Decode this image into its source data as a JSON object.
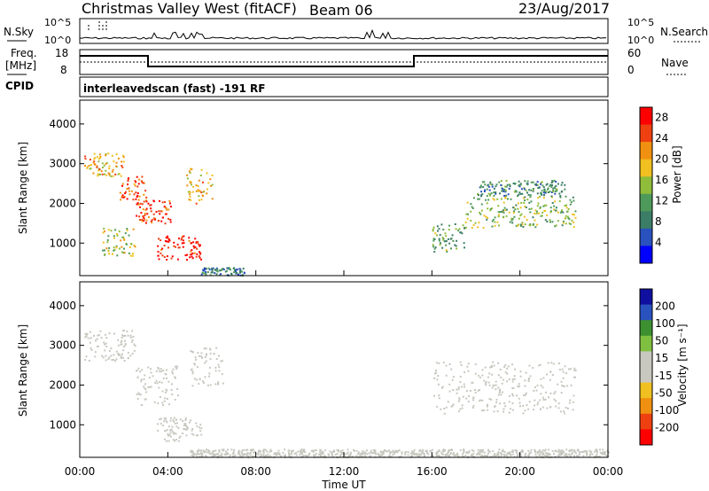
{
  "header": {
    "radar": "Christmas Valley West (fitACF)",
    "beam": "Beam 06",
    "date": "23/Aug/2017"
  },
  "top_panels": {
    "nsky_label": "N.Sky",
    "nsearch_label": "N.Search",
    "noise_ticks": [
      "10^5",
      "10^0"
    ],
    "freq_label_line1": "Freq.",
    "freq_label_line2": "[MHz]",
    "freq_ticks": [
      "18",
      "8"
    ],
    "nave_label": "Nave",
    "nave_ticks": [
      "60",
      "0"
    ],
    "cpid_label": "CPID",
    "cpid_text": "interleavedscan (fast) -191 RF"
  },
  "chart_data": [
    {
      "type": "heatmap",
      "title": "",
      "xlabel": "",
      "ylabel": "Slant Range [km]",
      "x_range_hours": [
        0,
        24
      ],
      "ylim": [
        180,
        4600
      ],
      "y_ticks": [
        1000,
        2000,
        3000,
        4000
      ],
      "colorbar": {
        "label": "Power [dB]",
        "ticks": [
          4,
          8,
          12,
          16,
          20,
          24,
          28
        ],
        "range": [
          0,
          30
        ],
        "colors": [
          "#0000ff",
          "#2a52be",
          "#3b7d66",
          "#4e9a5a",
          "#8fbc3a",
          "#f0c020",
          "#f09010",
          "#ee4010",
          "#ff0000"
        ]
      },
      "regions": [
        {
          "t0": 0.2,
          "t1": 2.0,
          "r0": 2700,
          "r1": 3300,
          "value": 20
        },
        {
          "t0": 1.8,
          "t1": 3.0,
          "r0": 2100,
          "r1": 2700,
          "value": 24
        },
        {
          "t0": 2.5,
          "t1": 4.2,
          "r0": 1500,
          "r1": 2100,
          "value": 26
        },
        {
          "t0": 3.5,
          "t1": 5.5,
          "r0": 600,
          "r1": 1200,
          "value": 28
        },
        {
          "t0": 1.0,
          "t1": 2.5,
          "r0": 700,
          "r1": 1400,
          "value": 16
        },
        {
          "t0": 4.8,
          "t1": 6.0,
          "r0": 2000,
          "r1": 2900,
          "value": 20
        },
        {
          "t0": 5.5,
          "t1": 7.5,
          "r0": 200,
          "r1": 400,
          "value": 8
        },
        {
          "t0": 16.0,
          "t1": 17.5,
          "r0": 800,
          "r1": 1500,
          "value": 12
        },
        {
          "t0": 17.5,
          "t1": 22.5,
          "r0": 1400,
          "r1": 2200,
          "value": 14
        },
        {
          "t0": 18.0,
          "t1": 22.0,
          "r0": 2200,
          "r1": 2600,
          "value": 10
        }
      ]
    },
    {
      "type": "heatmap",
      "title": "",
      "xlabel": "Time UT",
      "ylabel": "Slant Range [km]",
      "x_range_hours": [
        0,
        24
      ],
      "x_ticks": [
        "00:00",
        "04:00",
        "08:00",
        "12:00",
        "16:00",
        "20:00",
        "00:00"
      ],
      "ylim": [
        180,
        4600
      ],
      "y_ticks": [
        1000,
        2000,
        3000,
        4000
      ],
      "colorbar": {
        "label": "Velocity [m s⁻¹]",
        "ticks": [
          200,
          100,
          50,
          15,
          -15,
          -50,
          -100,
          -200
        ],
        "colors": [
          "#ff0000",
          "#ee4010",
          "#f09010",
          "#f0c020",
          "#c8c8c0",
          "#c8c8c0",
          "#80c040",
          "#3c9030",
          "#2a52be",
          "#1010a0"
        ]
      },
      "regions": [
        {
          "t0": 0.2,
          "t1": 2.5,
          "r0": 2600,
          "r1": 3400,
          "value": 0
        },
        {
          "t0": 2.5,
          "t1": 4.5,
          "r0": 1500,
          "r1": 2500,
          "value": -30
        },
        {
          "t0": 3.5,
          "t1": 5.5,
          "r0": 600,
          "r1": 1200,
          "value": 0
        },
        {
          "t0": 5.0,
          "t1": 6.5,
          "r0": 2000,
          "r1": 3000,
          "value": 0
        },
        {
          "t0": 16.0,
          "t1": 22.5,
          "r0": 1300,
          "r1": 2600,
          "value": 0
        },
        {
          "t0": 5.0,
          "t1": 24.0,
          "r0": 200,
          "r1": 400,
          "value": 40
        }
      ]
    }
  ]
}
